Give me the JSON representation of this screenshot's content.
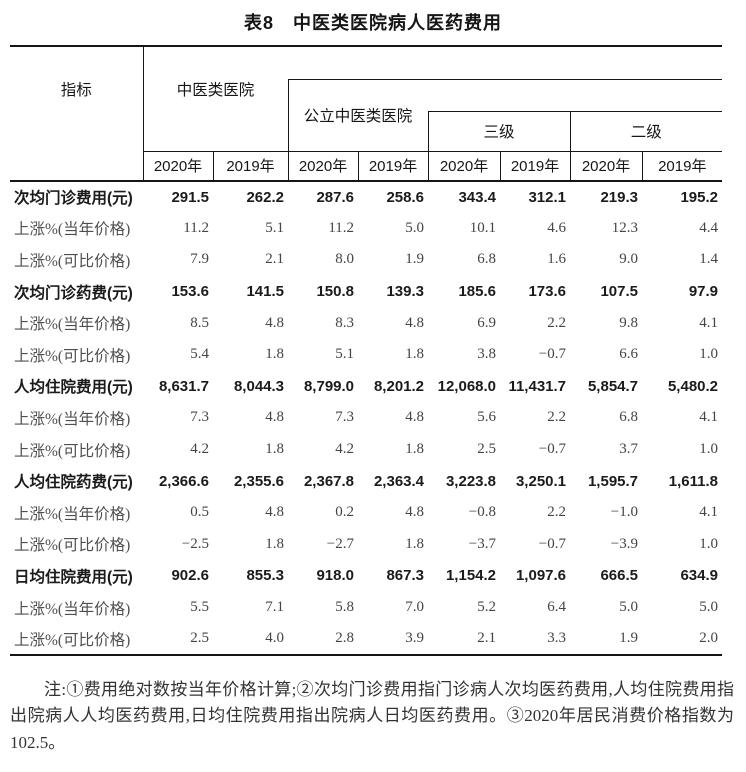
{
  "title": "表8　中医类医院病人医药费用",
  "table": {
    "stub_header": "指标",
    "group_tcm": "中医类医院",
    "group_public_tcm": "公立中医类医院",
    "group_tier3": "三级",
    "group_tier2": "二级",
    "year_cols": [
      "2020年",
      "2019年",
      "2020年",
      "2019年",
      "2020年",
      "2019年",
      "2020年",
      "2019年"
    ],
    "rows": [
      {
        "label": "次均门诊费用(元)",
        "bold": true,
        "values": [
          "291.5",
          "262.2",
          "287.6",
          "258.6",
          "343.4",
          "312.1",
          "219.3",
          "195.2"
        ]
      },
      {
        "label": "上涨%(当年价格)",
        "bold": false,
        "values": [
          "11.2",
          "5.1",
          "11.2",
          "5.0",
          "10.1",
          "4.6",
          "12.3",
          "4.4"
        ]
      },
      {
        "label": "上涨%(可比价格)",
        "bold": false,
        "values": [
          "7.9",
          "2.1",
          "8.0",
          "1.9",
          "6.8",
          "1.6",
          "9.0",
          "1.4"
        ]
      },
      {
        "label": "次均门诊药费(元)",
        "bold": true,
        "values": [
          "153.6",
          "141.5",
          "150.8",
          "139.3",
          "185.6",
          "173.6",
          "107.5",
          "97.9"
        ]
      },
      {
        "label": "上涨%(当年价格)",
        "bold": false,
        "values": [
          "8.5",
          "4.8",
          "8.3",
          "4.8",
          "6.9",
          "2.2",
          "9.8",
          "4.1"
        ]
      },
      {
        "label": "上涨%(可比价格)",
        "bold": false,
        "values": [
          "5.4",
          "1.8",
          "5.1",
          "1.8",
          "3.8",
          "−0.7",
          "6.6",
          "1.0"
        ]
      },
      {
        "label": "人均住院费用(元)",
        "bold": true,
        "values": [
          "8,631.7",
          "8,044.3",
          "8,799.0",
          "8,201.2",
          "12,068.0",
          "11,431.7",
          "5,854.7",
          "5,480.2"
        ]
      },
      {
        "label": "上涨%(当年价格)",
        "bold": false,
        "values": [
          "7.3",
          "4.8",
          "7.3",
          "4.8",
          "5.6",
          "2.2",
          "6.8",
          "4.1"
        ]
      },
      {
        "label": "上涨%(可比价格)",
        "bold": false,
        "values": [
          "4.2",
          "1.8",
          "4.2",
          "1.8",
          "2.5",
          "−0.7",
          "3.7",
          "1.0"
        ]
      },
      {
        "label": "人均住院药费(元)",
        "bold": true,
        "values": [
          "2,366.6",
          "2,355.6",
          "2,367.8",
          "2,363.4",
          "3,223.8",
          "3,250.1",
          "1,595.7",
          "1,611.8"
        ]
      },
      {
        "label": "上涨%(当年价格)",
        "bold": false,
        "values": [
          "0.5",
          "4.8",
          "0.2",
          "4.8",
          "−0.8",
          "2.2",
          "−1.0",
          "4.1"
        ]
      },
      {
        "label": "上涨%(可比价格)",
        "bold": false,
        "values": [
          "−2.5",
          "1.8",
          "−2.7",
          "1.8",
          "−3.7",
          "−0.7",
          "−3.9",
          "1.0"
        ]
      },
      {
        "label": "日均住院费用(元)",
        "bold": true,
        "values": [
          "902.6",
          "855.3",
          "918.0",
          "867.3",
          "1,154.2",
          "1,097.6",
          "666.5",
          "634.9"
        ]
      },
      {
        "label": "上涨%(当年价格)",
        "bold": false,
        "values": [
          "5.5",
          "7.1",
          "5.8",
          "7.0",
          "5.2",
          "6.4",
          "5.0",
          "5.0"
        ]
      },
      {
        "label": "上涨%(可比价格)",
        "bold": false,
        "values": [
          "2.5",
          "4.0",
          "2.8",
          "3.9",
          "2.1",
          "3.3",
          "1.9",
          "2.0"
        ]
      }
    ]
  },
  "note": "注:①费用绝对数按当年价格计算;②次均门诊费用指门诊病人次均医药费用,人均住院费用指出院病人人均医药费用,日均住院费用指出院病人日均医药费用。③2020年居民消费价格指数为102.5。"
}
